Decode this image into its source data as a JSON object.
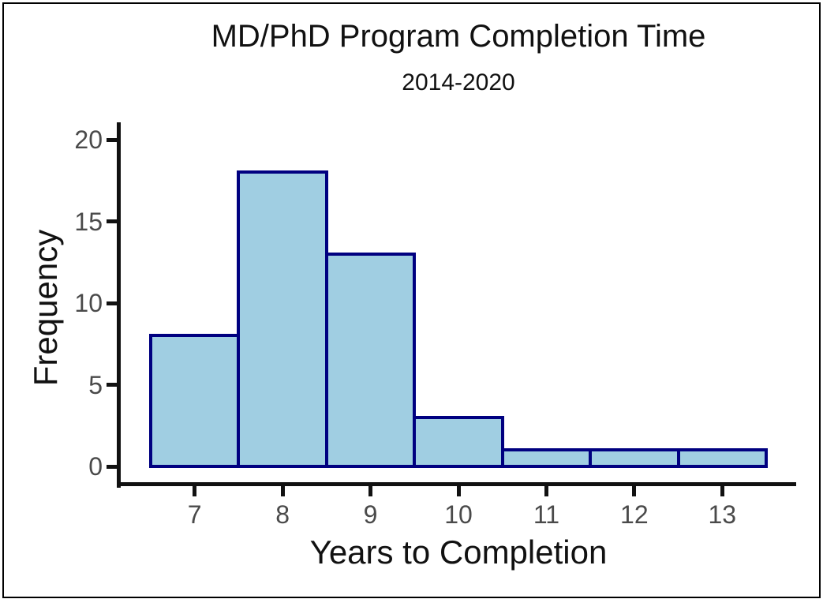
{
  "chart_data": {
    "type": "bar",
    "chart_kind": "histogram",
    "title": "MD/PhD Program Completion Time",
    "subtitle": "2014-2020",
    "xlabel": "Years to Completion",
    "ylabel": "Frequency",
    "categories": [
      7,
      8,
      9,
      10,
      11,
      12,
      13
    ],
    "values": [
      8,
      18,
      13,
      3,
      1,
      1,
      1
    ],
    "bin_width": 1,
    "x_ticks": [
      "7",
      "8",
      "9",
      "10",
      "11",
      "12",
      "13"
    ],
    "y_ticks": [
      "0",
      "5",
      "10",
      "15",
      "20"
    ],
    "y_tick_values": [
      0,
      5,
      10,
      15,
      20
    ],
    "xlim": [
      6.5,
      13.5
    ],
    "ylim": [
      0,
      20
    ],
    "grid": false,
    "legend_position": "none",
    "colors": {
      "bar_fill": "#A0CEE2",
      "bar_border": "#000080",
      "axis_line": "#111111",
      "tick_label": "#4a4a4a",
      "title_text": "#111111",
      "background": "#ffffff"
    }
  }
}
